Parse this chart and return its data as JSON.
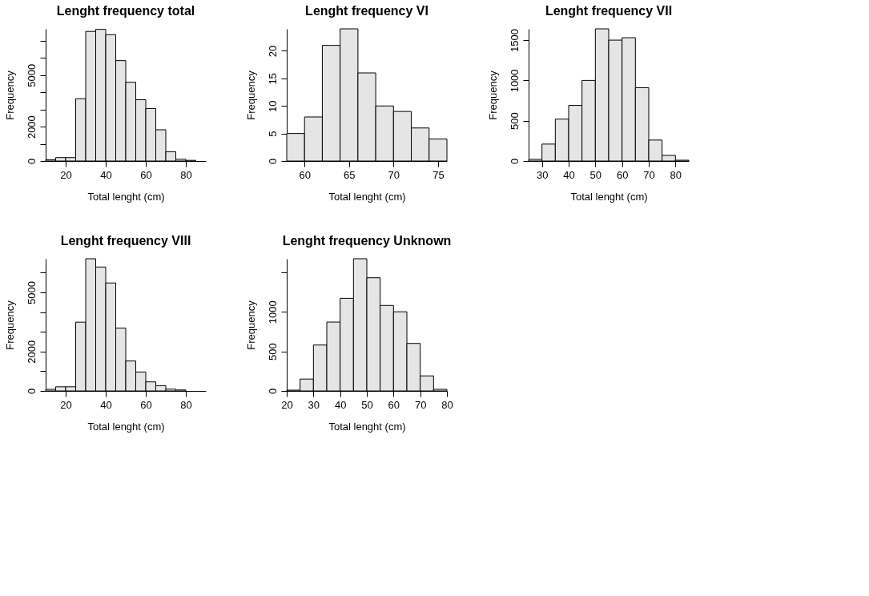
{
  "chart_data": [
    {
      "type": "histogram",
      "title": "Lenght frequency total",
      "xlabel": "Total lenght (cm)",
      "ylabel": "Frequency",
      "grid": false,
      "bins": [
        10,
        15,
        20,
        25,
        30,
        35,
        40,
        45,
        50,
        55,
        60,
        65,
        70,
        75,
        80,
        85,
        90
      ],
      "values": [
        70,
        200,
        200,
        3630,
        7550,
        7670,
        7360,
        5850,
        4590,
        3570,
        3060,
        1820,
        540,
        100,
        40,
        null
      ],
      "color": "#e5e5e5",
      "xlim": [
        10,
        90
      ],
      "xticks": [
        20,
        40,
        60,
        80
      ],
      "ylim": [
        0,
        7700
      ],
      "yticks": [
        0,
        {
          "value": 1000,
          "label": null
        },
        2000,
        {
          "value": 3000,
          "label": null
        },
        {
          "value": 4000,
          "label": null
        },
        5000,
        {
          "value": 6000,
          "label": null
        },
        {
          "value": 7000,
          "label": null
        }
      ]
    },
    {
      "type": "histogram",
      "title": "Lenght frequency VI",
      "xlabel": "Total lenght (cm)",
      "ylabel": "Frequency",
      "grid": false,
      "bins": [
        58,
        60,
        62,
        64,
        66,
        68,
        70,
        72,
        74,
        76
      ],
      "values": [
        5,
        8,
        21,
        24,
        16,
        10,
        9,
        6,
        4
      ],
      "color": "#e5e5e5",
      "xlim": [
        58,
        76
      ],
      "xticks": [
        60,
        65,
        70,
        75
      ],
      "ylim": [
        0,
        24
      ],
      "yticks": [
        0,
        5,
        10,
        15,
        20
      ]
    },
    {
      "type": "histogram",
      "title": "Lenght frequency VII",
      "xlabel": "Total lenght (cm)",
      "ylabel": "Frequency",
      "grid": false,
      "bins": [
        25,
        30,
        35,
        40,
        45,
        50,
        55,
        60,
        65,
        70,
        75,
        80,
        85
      ],
      "values": [
        20,
        210,
        520,
        690,
        1000,
        1640,
        1500,
        1530,
        910,
        260,
        70,
        10
      ],
      "color": "#e5e5e5",
      "xlim": [
        25,
        85
      ],
      "xticks": [
        30,
        40,
        50,
        60,
        70,
        80
      ],
      "ylim": [
        0,
        1640
      ],
      "yticks": [
        0,
        500,
        1000,
        1500
      ]
    },
    {
      "type": "histogram",
      "title": "Lenght frequency VIII",
      "xlabel": "Total lenght (cm)",
      "ylabel": "Frequency",
      "grid": false,
      "bins": [
        10,
        15,
        20,
        25,
        30,
        35,
        40,
        45,
        50,
        55,
        60,
        65,
        70,
        75,
        80,
        85,
        90
      ],
      "values": [
        80,
        210,
        210,
        3490,
        6710,
        6290,
        5480,
        3190,
        1520,
        960,
        460,
        270,
        90,
        50,
        null,
        null
      ],
      "color": "#e5e5e5",
      "xlim": [
        10,
        90
      ],
      "xticks": [
        20,
        40,
        60,
        80
      ],
      "ylim": [
        0,
        6710
      ],
      "yticks": [
        0,
        {
          "value": 1000,
          "label": null
        },
        2000,
        {
          "value": 3000,
          "label": null
        },
        {
          "value": 4000,
          "label": null
        },
        5000,
        {
          "value": 6000,
          "label": null
        }
      ]
    },
    {
      "type": "histogram",
      "title": "Lenght frequency Unknown",
      "xlabel": "Total lenght (cm)",
      "ylabel": "Frequency",
      "grid": false,
      "bins": [
        20,
        25,
        30,
        35,
        40,
        45,
        50,
        55,
        60,
        65,
        70,
        75,
        80
      ],
      "values": [
        10,
        150,
        580,
        870,
        1170,
        1670,
        1430,
        1080,
        1000,
        600,
        190,
        20
      ],
      "color": "#e5e5e5",
      "xlim": [
        20,
        80
      ],
      "xticks": [
        20,
        30,
        40,
        50,
        60,
        70,
        80
      ],
      "ylim": [
        0,
        1670
      ],
      "yticks": [
        0,
        500,
        1000,
        {
          "value": 1500,
          "label": null
        }
      ]
    }
  ]
}
